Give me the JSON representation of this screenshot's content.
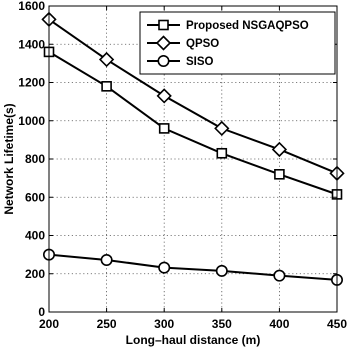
{
  "chart_data": {
    "type": "line",
    "xlabel": "Long–haul distance (m)",
    "ylabel": "Network Lifetime(s)",
    "x": [
      200,
      250,
      300,
      350,
      400,
      450
    ],
    "xlim": [
      200,
      450
    ],
    "ylim": [
      0,
      1600
    ],
    "xticks": [
      200,
      250,
      300,
      350,
      400,
      450
    ],
    "yticks": [
      0,
      200,
      400,
      600,
      800,
      1000,
      1200,
      1400,
      1600
    ],
    "grid": true,
    "legend_position": "top-right",
    "line_color": "#000000",
    "series": [
      {
        "name": "Proposed NSGAQPSO",
        "marker": "square",
        "values": [
          1360,
          1180,
          960,
          830,
          720,
          615
        ]
      },
      {
        "name": "QPSO",
        "marker": "diamond",
        "values": [
          1530,
          1320,
          1130,
          960,
          850,
          725
        ]
      },
      {
        "name": "SISO",
        "marker": "circle",
        "values": [
          300,
          272,
          232,
          215,
          190,
          168
        ]
      }
    ]
  }
}
